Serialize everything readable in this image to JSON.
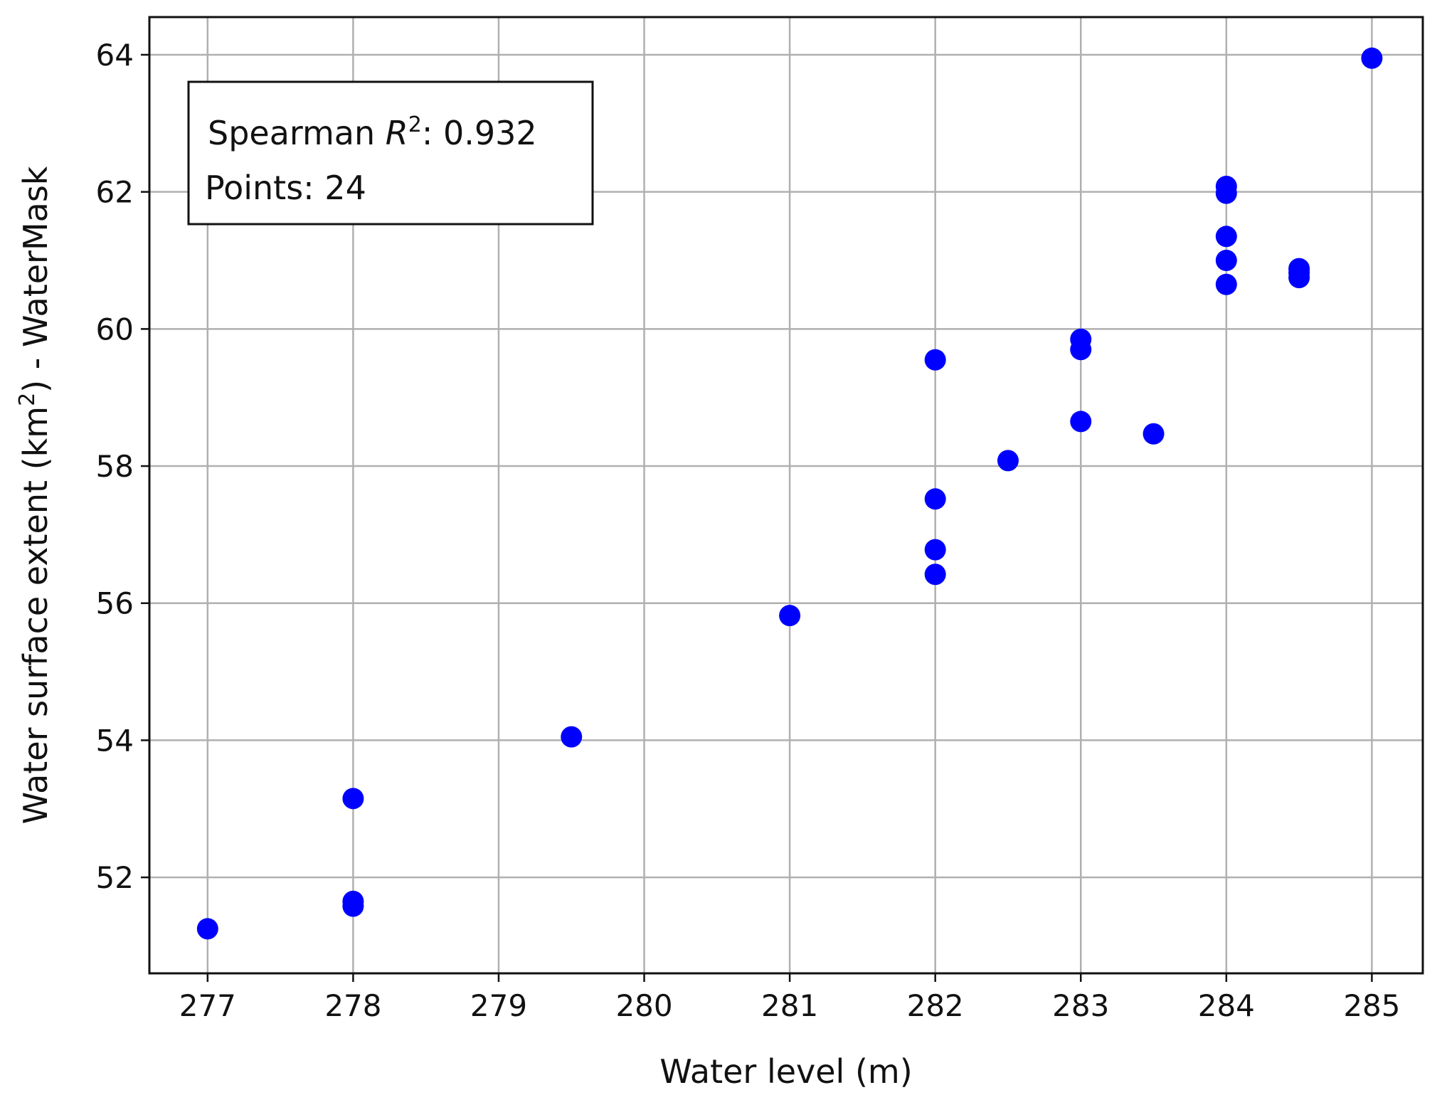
{
  "chart_data": {
    "type": "scatter",
    "xlabel": "Water level (m)",
    "ylabel": {
      "before": "Water surface extent (km",
      "sup": "2",
      "after": ") - WaterMask"
    },
    "xlim": [
      276.6,
      285.35
    ],
    "ylim": [
      50.6,
      64.55
    ],
    "x_ticks": [
      277,
      278,
      279,
      280,
      281,
      282,
      283,
      284,
      285
    ],
    "y_ticks": [
      52,
      54,
      56,
      58,
      60,
      62,
      64
    ],
    "grid": true,
    "marker_color": "#0000ff",
    "annotation": {
      "placement": "top-left",
      "line1_prefix": "Spearman ",
      "line1_symbol": "R",
      "line1_sup": "2",
      "line1_suffix": ": 0.932",
      "line2": "Points: 24"
    },
    "points": [
      {
        "x": 277.0,
        "y": 51.25
      },
      {
        "x": 278.0,
        "y": 53.15
      },
      {
        "x": 278.0,
        "y": 51.65
      },
      {
        "x": 278.0,
        "y": 51.58
      },
      {
        "x": 279.5,
        "y": 54.05
      },
      {
        "x": 281.0,
        "y": 55.82
      },
      {
        "x": 282.0,
        "y": 59.55
      },
      {
        "x": 282.0,
        "y": 57.52
      },
      {
        "x": 282.0,
        "y": 56.78
      },
      {
        "x": 282.0,
        "y": 56.42
      },
      {
        "x": 282.5,
        "y": 58.08
      },
      {
        "x": 283.0,
        "y": 59.85
      },
      {
        "x": 283.0,
        "y": 59.7
      },
      {
        "x": 283.0,
        "y": 58.65
      },
      {
        "x": 283.5,
        "y": 58.47
      },
      {
        "x": 284.0,
        "y": 62.08
      },
      {
        "x": 284.0,
        "y": 61.98
      },
      {
        "x": 284.0,
        "y": 61.35
      },
      {
        "x": 284.0,
        "y": 61.0
      },
      {
        "x": 284.0,
        "y": 60.65
      },
      {
        "x": 284.5,
        "y": 60.88
      },
      {
        "x": 284.5,
        "y": 60.82
      },
      {
        "x": 284.5,
        "y": 60.75
      },
      {
        "x": 285.0,
        "y": 63.95
      }
    ]
  }
}
